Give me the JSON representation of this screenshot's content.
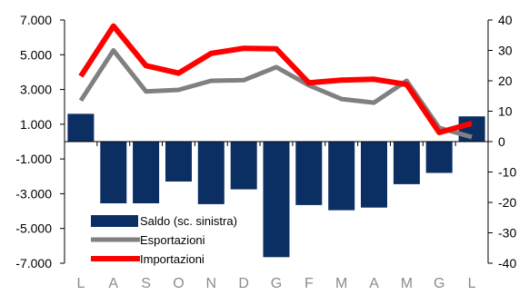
{
  "chart_data": {
    "type": "bar",
    "categories": [
      "L",
      "A",
      "S",
      "O",
      "N",
      "D",
      "G",
      "F",
      "M",
      "A",
      "M",
      "G",
      "L"
    ],
    "left_axis": {
      "ylim": [
        -7000,
        7000
      ],
      "ticks": [
        7000,
        5000,
        3000,
        1000,
        -1000,
        -3000,
        -5000,
        -7000
      ],
      "tick_labels": [
        "7.000",
        "5.000",
        "3.000",
        "1.000",
        "-1.000",
        "-3.000",
        "-5.000",
        "-7.000"
      ]
    },
    "right_axis": {
      "ylim": [
        -40,
        40
      ],
      "ticks": [
        40,
        30,
        20,
        10,
        0,
        -10,
        -20,
        -30,
        -40
      ],
      "tick_labels": [
        "40",
        "30",
        "20",
        "10",
        "0",
        "-10",
        "-20",
        "-30",
        "-40"
      ]
    },
    "series": [
      {
        "name": "Saldo (sc. sinistra)",
        "type": "bar",
        "axis": "left",
        "color": "#0b2f63",
        "values": [
          1600,
          -3550,
          -3550,
          -2300,
          -3600,
          -2750,
          -6650,
          -3650,
          -3950,
          -3800,
          -2450,
          -1800,
          1450
        ]
      },
      {
        "name": "Esportazioni",
        "type": "line",
        "axis": "right",
        "color": "#808080",
        "values": [
          13.5,
          30,
          16.5,
          17,
          20,
          20.2,
          24.5,
          18.5,
          14,
          12.8,
          20,
          4.5,
          1.5
        ]
      },
      {
        "name": "Importazioni",
        "type": "line",
        "axis": "right",
        "color": "#ff0000",
        "values": [
          21.5,
          38,
          25,
          22.5,
          29,
          30.7,
          30.5,
          19.3,
          20.2,
          20.5,
          18.8,
          3,
          6
        ]
      }
    ],
    "legend": {
      "placement": "bottom-left",
      "entries": [
        "Saldo (sc. sinistra)",
        "Esportazioni",
        "Importazioni"
      ]
    },
    "grid": false
  }
}
